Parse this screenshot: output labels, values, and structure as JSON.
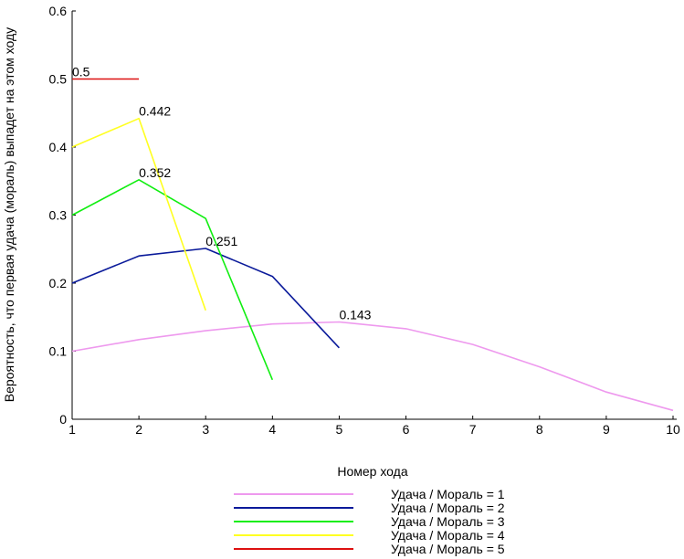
{
  "chart_data": {
    "type": "line",
    "title": "",
    "xlabel": "Номер хода",
    "ylabel": "Вероятность, что первая удача (мораль) выпадет на этом ходу",
    "xlim": [
      1,
      10
    ],
    "ylim": [
      0,
      0.6
    ],
    "xticks": [
      "1",
      "2",
      "3",
      "4",
      "5",
      "6",
      "7",
      "8",
      "9",
      "10"
    ],
    "yticks": [
      "0",
      "0.1",
      "0.2",
      "0.3",
      "0.4",
      "0.5",
      "0.6"
    ],
    "grid": false,
    "legend_position": "bottom",
    "series": [
      {
        "name": "Удача / Мораль = 1",
        "color": "#ee99ee",
        "x": [
          1,
          2,
          3,
          4,
          5,
          6,
          7,
          8,
          9,
          10
        ],
        "values": [
          0.1,
          0.117,
          0.13,
          0.14,
          0.143,
          0.133,
          0.11,
          0.077,
          0.04,
          0.013
        ],
        "peak_label": "0.143",
        "peak_index": 4
      },
      {
        "name": "Удача / Мораль = 2",
        "color": "#0a1a9a",
        "x": [
          1,
          2,
          3,
          4,
          5
        ],
        "values": [
          0.2,
          0.24,
          0.251,
          0.21,
          0.105
        ],
        "peak_label": "0.251",
        "peak_index": 2
      },
      {
        "name": "Удача / Мораль = 3",
        "color": "#11ee11",
        "x": [
          1,
          2,
          3,
          4
        ],
        "values": [
          0.3,
          0.352,
          0.295,
          0.058
        ],
        "peak_label": "0.352",
        "peak_index": 1
      },
      {
        "name": "Удача / Мораль = 4",
        "color": "#ffff22",
        "x": [
          1,
          2,
          3
        ],
        "values": [
          0.4,
          0.442,
          0.16
        ],
        "peak_label": "0.442",
        "peak_index": 1
      },
      {
        "name": "Удача / Мораль = 5",
        "color": "#dd1111",
        "x": [
          1,
          2
        ],
        "values": [
          0.5,
          0.5
        ],
        "peak_label": "0.5",
        "peak_index": 0
      }
    ]
  }
}
